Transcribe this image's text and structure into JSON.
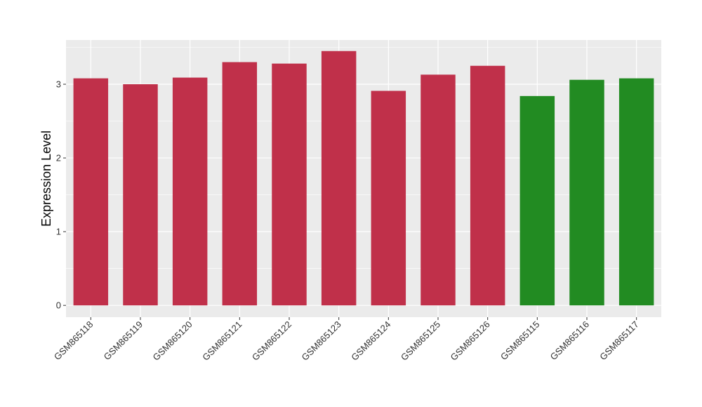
{
  "chart_data": {
    "type": "bar",
    "title": "",
    "xlabel": "",
    "ylabel": "Expression Level",
    "ylim": [
      -0.16,
      3.6
    ],
    "yticks": [
      0,
      1,
      2,
      3
    ],
    "grid": true,
    "background": "#EBEBEB",
    "categories": [
      "GSM865118",
      "GSM865119",
      "GSM865120",
      "GSM865121",
      "GSM865122",
      "GSM865123",
      "GSM865124",
      "GSM865125",
      "GSM865126",
      "GSM865115",
      "GSM865116",
      "GSM865117"
    ],
    "values": [
      3.08,
      3.0,
      3.09,
      3.3,
      3.28,
      3.45,
      2.91,
      3.13,
      3.25,
      2.84,
      3.06,
      3.08
    ],
    "colors": [
      "#C0304A",
      "#C0304A",
      "#C0304A",
      "#C0304A",
      "#C0304A",
      "#C0304A",
      "#C0304A",
      "#C0304A",
      "#C0304A",
      "#228B22",
      "#228B22",
      "#228B22"
    ]
  }
}
